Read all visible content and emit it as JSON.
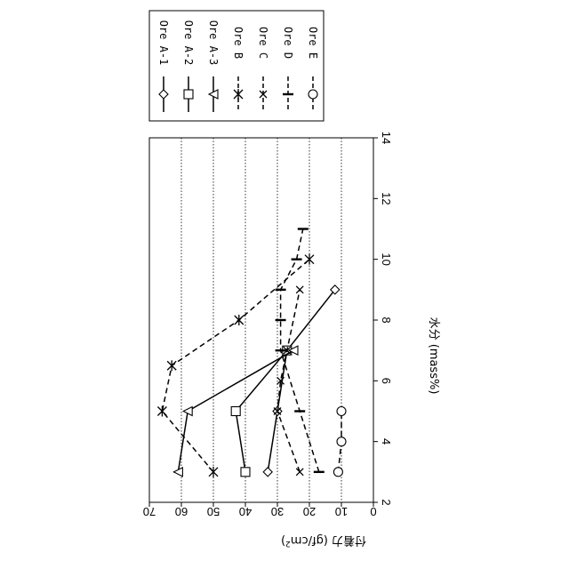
{
  "chart_data": {
    "type": "line",
    "xlabel": "水分 (mass%)",
    "ylabel": "付着力 (gf/cm²)",
    "ylabel_main": "付着力 (gf/cm",
    "ylabel_sup": "2",
    "ylabel_close": ")",
    "xlim": [
      2,
      14
    ],
    "ylim": [
      0,
      70
    ],
    "xticks": [
      2,
      4,
      6,
      8,
      10,
      12,
      14
    ],
    "yticks": [
      0,
      10,
      20,
      30,
      40,
      50,
      60,
      70
    ],
    "grid": "horizontal-dotted",
    "orientation": "rotated-90-clockwise",
    "legend_position": "top-right",
    "series": [
      {
        "name": "Ore A-1",
        "line": "solid",
        "marker": "diamond",
        "points": [
          [
            3,
            33
          ],
          [
            5,
            30
          ],
          [
            7,
            27
          ],
          [
            9,
            12
          ]
        ]
      },
      {
        "name": "Ore A-2",
        "line": "solid",
        "marker": "square",
        "points": [
          [
            3,
            40
          ],
          [
            5,
            43
          ],
          [
            7,
            27
          ]
        ]
      },
      {
        "name": "Ore A-3",
        "line": "solid",
        "marker": "triangle",
        "points": [
          [
            3,
            61
          ],
          [
            5,
            58
          ],
          [
            7,
            25
          ]
        ]
      },
      {
        "name": "Ore B",
        "line": "dashed",
        "marker": "asterisk",
        "points": [
          [
            3,
            50
          ],
          [
            5,
            66
          ],
          [
            6.5,
            63
          ],
          [
            8,
            42
          ],
          [
            10,
            20
          ]
        ]
      },
      {
        "name": "Ore C",
        "line": "dashed",
        "marker": "x",
        "points": [
          [
            3,
            23
          ],
          [
            5,
            30
          ],
          [
            6,
            29
          ],
          [
            7,
            27
          ],
          [
            9,
            23
          ]
        ]
      },
      {
        "name": "Ore D",
        "line": "dashed",
        "marker": "bar",
        "points": [
          [
            3,
            17
          ],
          [
            5,
            23
          ],
          [
            7,
            29
          ],
          [
            8,
            29
          ],
          [
            9,
            29
          ],
          [
            10,
            24
          ],
          [
            11,
            22
          ]
        ]
      },
      {
        "name": "Ore E",
        "line": "dashed",
        "marker": "circle",
        "points": [
          [
            3,
            11
          ],
          [
            4,
            10
          ],
          [
            5,
            10
          ]
        ]
      }
    ]
  }
}
